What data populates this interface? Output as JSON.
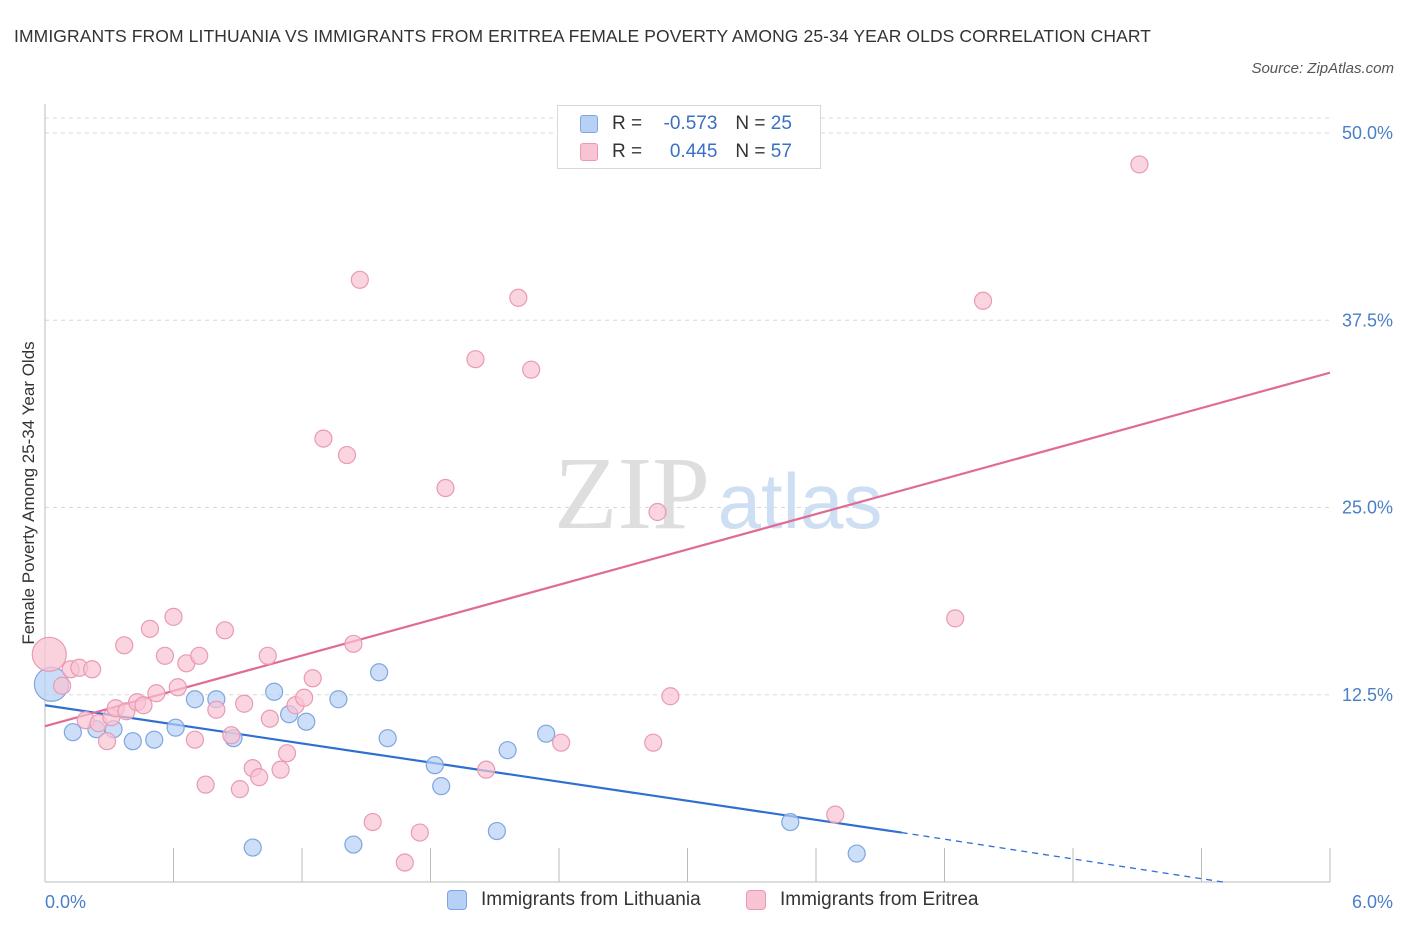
{
  "title": "IMMIGRANTS FROM LITHUANIA VS IMMIGRANTS FROM ERITREA FEMALE POVERTY AMONG 25-34 YEAR OLDS CORRELATION CHART",
  "source": "Source: ZipAtlas.com",
  "watermark": {
    "zip": "ZIP",
    "atlas": "atlas"
  },
  "colors": {
    "lithuania_fill": "#b7d0f5",
    "lithuania_stroke": "#7ea6e0",
    "lithuania_line": "#2e6fd0",
    "eritrea_fill": "#f8c3d3",
    "eritrea_stroke": "#e99ab4",
    "eritrea_line": "#e06b95",
    "axis_text": "#4a7fc8",
    "grid": "#d8d8d8"
  },
  "legend": {
    "rows": [
      {
        "r_label": "R =",
        "r_value": "-0.573",
        "n_label": "N =",
        "n_value": "25"
      },
      {
        "r_label": "R =",
        "r_value": "0.445",
        "n_label": "N =",
        "n_value": "57"
      }
    ]
  },
  "chart_data": {
    "type": "scatter",
    "title": "IMMIGRANTS FROM LITHUANIA VS IMMIGRANTS FROM ERITREA FEMALE POVERTY AMONG 25-34 YEAR OLDS CORRELATION CHART",
    "xlabel": "",
    "ylabel": "Female Poverty Among 25-34 Year Olds",
    "xlim": [
      0,
      6
    ],
    "ylim": [
      0,
      50
    ],
    "x_tick_labels": [
      "0.0%",
      "6.0%"
    ],
    "y_tick_labels": [
      "12.5%",
      "25.0%",
      "37.5%",
      "50.0%"
    ],
    "y_ticks": [
      12.5,
      25,
      37.5,
      50
    ],
    "grid": true,
    "legend_position": "bottom",
    "series": [
      {
        "name": "Immigrants from Lithuania",
        "r": -0.573,
        "n": 25,
        "trend": {
          "x0": 0,
          "y0": 11.8,
          "x1": 4.0,
          "y1": 3.3,
          "dash_to_x": 5.5,
          "dash_to_y": 0
        },
        "points": [
          {
            "x": 0.03,
            "y": 13.2,
            "big": true
          },
          {
            "x": 0.13,
            "y": 10.0
          },
          {
            "x": 0.24,
            "y": 10.2
          },
          {
            "x": 0.32,
            "y": 10.2
          },
          {
            "x": 0.41,
            "y": 9.4
          },
          {
            "x": 0.51,
            "y": 9.5
          },
          {
            "x": 0.61,
            "y": 10.3
          },
          {
            "x": 0.7,
            "y": 12.2
          },
          {
            "x": 0.8,
            "y": 12.2
          },
          {
            "x": 0.88,
            "y": 9.6
          },
          {
            "x": 0.97,
            "y": 2.3
          },
          {
            "x": 1.07,
            "y": 12.7
          },
          {
            "x": 1.14,
            "y": 11.2
          },
          {
            "x": 1.22,
            "y": 10.7
          },
          {
            "x": 1.37,
            "y": 12.2
          },
          {
            "x": 1.44,
            "y": 2.5
          },
          {
            "x": 1.56,
            "y": 14.0
          },
          {
            "x": 1.6,
            "y": 9.6
          },
          {
            "x": 1.82,
            "y": 7.8
          },
          {
            "x": 1.85,
            "y": 6.4
          },
          {
            "x": 2.11,
            "y": 3.4
          },
          {
            "x": 2.16,
            "y": 8.8
          },
          {
            "x": 2.34,
            "y": 9.9
          },
          {
            "x": 3.48,
            "y": 4.0
          },
          {
            "x": 3.79,
            "y": 1.9
          }
        ]
      },
      {
        "name": "Immigrants from Eritrea",
        "r": 0.445,
        "n": 57,
        "trend": {
          "x0": 0,
          "y0": 10.4,
          "x1": 6.0,
          "y1": 34.0
        },
        "points": [
          {
            "x": 0.02,
            "y": 15.2,
            "big": true
          },
          {
            "x": 0.08,
            "y": 13.1
          },
          {
            "x": 0.12,
            "y": 14.2
          },
          {
            "x": 0.16,
            "y": 14.3
          },
          {
            "x": 0.19,
            "y": 10.8
          },
          {
            "x": 0.22,
            "y": 14.2
          },
          {
            "x": 0.25,
            "y": 10.6
          },
          {
            "x": 0.29,
            "y": 9.4
          },
          {
            "x": 0.31,
            "y": 11.0
          },
          {
            "x": 0.33,
            "y": 11.6
          },
          {
            "x": 0.37,
            "y": 15.8
          },
          {
            "x": 0.38,
            "y": 11.4
          },
          {
            "x": 0.43,
            "y": 12.0
          },
          {
            "x": 0.46,
            "y": 11.8
          },
          {
            "x": 0.49,
            "y": 16.9
          },
          {
            "x": 0.52,
            "y": 12.6
          },
          {
            "x": 0.56,
            "y": 15.1
          },
          {
            "x": 0.6,
            "y": 17.7
          },
          {
            "x": 0.62,
            "y": 13.0
          },
          {
            "x": 0.66,
            "y": 14.6
          },
          {
            "x": 0.7,
            "y": 9.5
          },
          {
            "x": 0.72,
            "y": 15.1
          },
          {
            "x": 0.75,
            "y": 6.5
          },
          {
            "x": 0.8,
            "y": 11.5
          },
          {
            "x": 0.84,
            "y": 16.8
          },
          {
            "x": 0.87,
            "y": 9.8
          },
          {
            "x": 0.91,
            "y": 6.2
          },
          {
            "x": 0.93,
            "y": 11.9
          },
          {
            "x": 0.97,
            "y": 7.6
          },
          {
            "x": 1.0,
            "y": 7.0
          },
          {
            "x": 1.04,
            "y": 15.1
          },
          {
            "x": 1.05,
            "y": 10.9
          },
          {
            "x": 1.1,
            "y": 7.5
          },
          {
            "x": 1.13,
            "y": 8.6
          },
          {
            "x": 1.17,
            "y": 11.8
          },
          {
            "x": 1.21,
            "y": 12.3
          },
          {
            "x": 1.25,
            "y": 13.6
          },
          {
            "x": 1.3,
            "y": 29.6
          },
          {
            "x": 1.41,
            "y": 28.5
          },
          {
            "x": 1.44,
            "y": 15.9
          },
          {
            "x": 1.47,
            "y": 40.2
          },
          {
            "x": 1.53,
            "y": 4.0
          },
          {
            "x": 1.68,
            "y": 1.3
          },
          {
            "x": 1.75,
            "y": 3.3
          },
          {
            "x": 1.87,
            "y": 26.3
          },
          {
            "x": 2.01,
            "y": 34.9
          },
          {
            "x": 2.06,
            "y": 7.5
          },
          {
            "x": 2.21,
            "y": 39.0
          },
          {
            "x": 2.27,
            "y": 34.2
          },
          {
            "x": 2.41,
            "y": 9.3
          },
          {
            "x": 2.84,
            "y": 9.3
          },
          {
            "x": 2.86,
            "y": 24.7
          },
          {
            "x": 2.92,
            "y": 12.4
          },
          {
            "x": 3.69,
            "y": 4.5
          },
          {
            "x": 4.25,
            "y": 17.6
          },
          {
            "x": 4.38,
            "y": 38.8
          },
          {
            "x": 5.11,
            "y": 47.9
          }
        ]
      }
    ]
  }
}
